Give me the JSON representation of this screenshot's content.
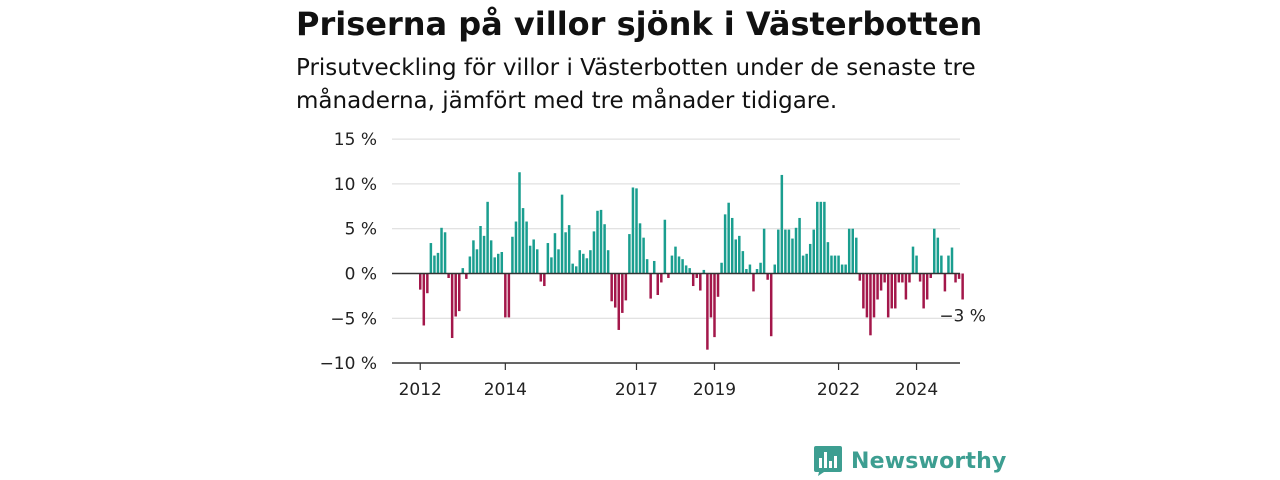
{
  "header": {
    "title": "Priserna på villor sjönk i Västerbotten",
    "subtitle": "Prisutveckling för villor i Västerbotten under de senaste tre månaderna, jämfört med tre månader tidigare."
  },
  "brand": {
    "name": "Newsworthy",
    "icon": "newsworthy-logo-icon",
    "color": "#3d9e91"
  },
  "chart_data": {
    "type": "bar",
    "xlabel": "",
    "ylabel": "",
    "ylim": [
      -10,
      15
    ],
    "yticks": [
      15,
      10,
      5,
      0,
      -5,
      -10
    ],
    "ytick_labels": [
      "15 %",
      "10 %",
      "5 %",
      "0 %",
      "−5 %",
      "−10 %"
    ],
    "xtick_labels": [
      "2012",
      "2014",
      "2017",
      "2019",
      "2022",
      "2024"
    ],
    "grid": true,
    "colors": {
      "positive": "#1a9e8f",
      "negative": "#a3174a",
      "grid": "#d9d9d9",
      "axis": "#333333"
    },
    "end_label": "−3 %",
    "series": [
      {
        "values": [
          -1.8,
          -5.8,
          -2.2,
          3.4,
          2.0,
          2.3,
          5.1,
          4.6,
          -0.5,
          -7.2,
          -4.8,
          -4.2,
          0.6,
          -0.6,
          1.9,
          3.7,
          2.7,
          5.3,
          4.2,
          8.0,
          3.7,
          1.8,
          2.2,
          2.4,
          -4.9,
          -4.9,
          4.1,
          5.8,
          11.3,
          7.3,
          5.8,
          3.1,
          3.8,
          2.7,
          -0.9,
          -1.4,
          3.4,
          1.8,
          4.5,
          2.7,
          8.8,
          4.6,
          5.4,
          1.1,
          0.8,
          2.6,
          2.2,
          1.7,
          2.6,
          4.7,
          7.0,
          7.1,
          5.5,
          2.6,
          -3.1,
          -3.8,
          -6.3,
          -4.4,
          -3.0,
          4.4,
          9.6,
          9.5,
          5.6,
          4.0,
          1.6,
          -2.8,
          1.4,
          -2.4,
          -1.0,
          6.0,
          -0.5,
          2.0,
          3.0,
          1.9,
          1.6,
          0.9,
          0.6,
          -1.4,
          -0.5,
          -1.9,
          0.4,
          -8.5,
          -4.9,
          -7.1,
          -2.6,
          1.2,
          6.6,
          7.9,
          6.2,
          3.8,
          4.2,
          2.5,
          0.5,
          1.0,
          -2.0,
          0.5,
          1.2,
          5.0,
          -0.7,
          -7.0,
          1.0,
          4.9,
          11.0,
          4.9,
          4.9,
          3.9,
          5.1,
          6.2,
          2.0,
          2.2,
          3.3,
          4.9,
          8.0,
          8.0,
          8.0,
          3.5,
          2.0,
          2.0,
          2.0,
          1.0,
          1.0,
          5.0,
          5.0,
          4.0,
          -0.8,
          -3.9,
          -4.9,
          -6.9,
          -4.9,
          -2.9,
          -1.9,
          -1.0,
          -4.9,
          -3.9,
          -3.9,
          -1.0,
          -1.0,
          -2.9,
          -1.0,
          3.0,
          2.0,
          -0.9,
          -3.9,
          -2.9,
          -0.5,
          5.0,
          4.0,
          2.0,
          -2.0,
          2.0,
          2.9,
          -1.0,
          -0.6,
          -2.9
        ]
      }
    ]
  }
}
